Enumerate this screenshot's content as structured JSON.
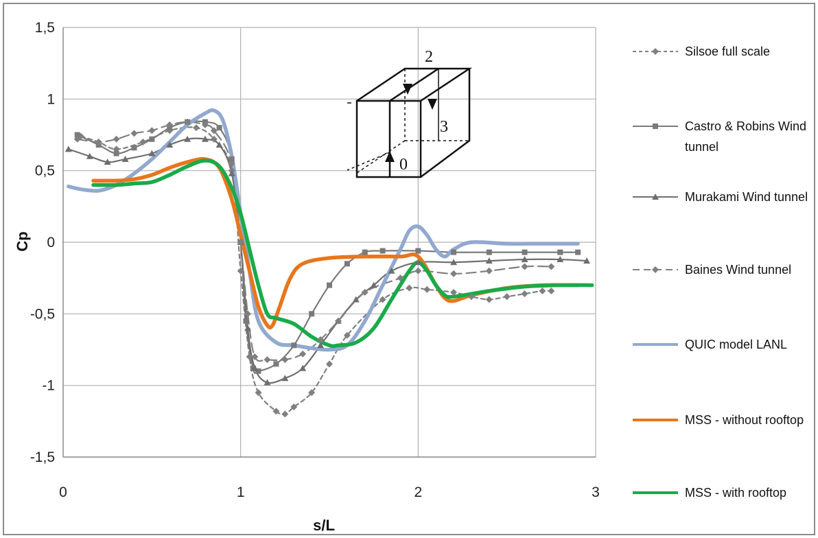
{
  "chart_data": {
    "type": "line",
    "xlabel": "s/L",
    "ylabel": "Cp",
    "xlim": [
      0,
      3
    ],
    "ylim": [
      -1.5,
      1.5
    ],
    "x_ticks": [
      "0",
      "1",
      "2",
      "3"
    ],
    "y_ticks": [
      "1,5",
      "1",
      "0,5",
      "0",
      "-0,5",
      "-1",
      "-1,5"
    ],
    "grid": "vertical and horizontal major gridlines",
    "legend_position": "right",
    "inset_labels": [
      "2",
      "3",
      "0"
    ],
    "series": [
      {
        "name": "Silsoe full scale",
        "color": "#808080",
        "style": "dashed",
        "marker": "diamond",
        "x": [
          0.1,
          0.2,
          0.3,
          0.45,
          0.6,
          0.75,
          0.85,
          0.95,
          1.0,
          1.05,
          1.1,
          1.2,
          1.25,
          1.3,
          1.4,
          1.5,
          1.6,
          1.8,
          1.95,
          2.05,
          2.2,
          2.3,
          2.4,
          2.5,
          2.6,
          2.7,
          2.75
        ],
        "y": [
          0.74,
          0.7,
          0.65,
          0.7,
          0.78,
          0.8,
          0.72,
          0.5,
          -0.2,
          -0.8,
          -1.05,
          -1.18,
          -1.2,
          -1.15,
          -1.05,
          -0.85,
          -0.65,
          -0.4,
          -0.32,
          -0.33,
          -0.35,
          -0.38,
          -0.4,
          -0.38,
          -0.36,
          -0.34,
          -0.34
        ]
      },
      {
        "name": "Castro & Robins Wind tunnel",
        "color": "#7a7a7a",
        "style": "solid",
        "marker": "square",
        "x": [
          0.08,
          0.2,
          0.3,
          0.4,
          0.5,
          0.6,
          0.7,
          0.8,
          0.88,
          0.95,
          1.0,
          1.03,
          1.07,
          1.1,
          1.2,
          1.3,
          1.4,
          1.5,
          1.6,
          1.7,
          1.8,
          2.0,
          2.2,
          2.4,
          2.6,
          2.8,
          2.9
        ],
        "y": [
          0.75,
          0.68,
          0.62,
          0.66,
          0.72,
          0.8,
          0.84,
          0.84,
          0.8,
          0.58,
          0.0,
          -0.55,
          -0.88,
          -0.9,
          -0.85,
          -0.72,
          -0.5,
          -0.3,
          -0.15,
          -0.07,
          -0.06,
          -0.06,
          -0.07,
          -0.07,
          -0.07,
          -0.07,
          -0.07
        ]
      },
      {
        "name": "Murakami Wind tunnel",
        "color": "#6e6e6e",
        "style": "solid",
        "marker": "triangle",
        "x": [
          0.03,
          0.15,
          0.25,
          0.35,
          0.5,
          0.6,
          0.7,
          0.8,
          0.88,
          0.95,
          1.0,
          1.04,
          1.08,
          1.15,
          1.25,
          1.35,
          1.45,
          1.55,
          1.65,
          1.75,
          1.85,
          2.0,
          2.2,
          2.4,
          2.6,
          2.8,
          2.95
        ],
        "y": [
          0.65,
          0.6,
          0.56,
          0.58,
          0.62,
          0.68,
          0.72,
          0.72,
          0.68,
          0.48,
          0.0,
          -0.6,
          -0.88,
          -0.98,
          -0.95,
          -0.88,
          -0.72,
          -0.55,
          -0.4,
          -0.3,
          -0.2,
          -0.14,
          -0.14,
          -0.13,
          -0.12,
          -0.12,
          -0.13
        ]
      },
      {
        "name": "Baines Wind tunnel",
        "color": "#808080",
        "style": "longdash",
        "marker": "diamond",
        "x": [
          0.08,
          0.2,
          0.3,
          0.4,
          0.5,
          0.6,
          0.7,
          0.8,
          0.85,
          0.95,
          1.0,
          1.04,
          1.08,
          1.15,
          1.25,
          1.35,
          1.45,
          1.55,
          1.7,
          1.9,
          2.0,
          2.2,
          2.4,
          2.6,
          2.75
        ],
        "y": [
          0.72,
          0.7,
          0.72,
          0.76,
          0.78,
          0.82,
          0.84,
          0.82,
          0.78,
          0.55,
          0.0,
          -0.5,
          -0.8,
          -0.82,
          -0.82,
          -0.78,
          -0.68,
          -0.55,
          -0.35,
          -0.25,
          -0.2,
          -0.22,
          -0.2,
          -0.17,
          -0.17
        ]
      },
      {
        "name": "QUIC model LANL",
        "color": "#92a9cf",
        "style": "solid",
        "marker": "none",
        "x": [
          0.03,
          0.1,
          0.2,
          0.3,
          0.4,
          0.5,
          0.6,
          0.7,
          0.8,
          0.85,
          0.9,
          0.95,
          1.0,
          1.05,
          1.1,
          1.2,
          1.3,
          1.4,
          1.5,
          1.6,
          1.7,
          1.8,
          1.9,
          1.95,
          2.0,
          2.05,
          2.1,
          2.15,
          2.2,
          2.3,
          2.5,
          2.7,
          2.9
        ],
        "y": [
          0.39,
          0.37,
          0.36,
          0.4,
          0.48,
          0.58,
          0.7,
          0.82,
          0.9,
          0.92,
          0.85,
          0.6,
          0.2,
          -0.2,
          -0.55,
          -0.7,
          -0.72,
          -0.74,
          -0.75,
          -0.72,
          -0.55,
          -0.3,
          -0.05,
          0.08,
          0.11,
          0.05,
          -0.05,
          -0.1,
          -0.05,
          0.0,
          -0.01,
          -0.01,
          -0.01
        ]
      },
      {
        "name": "MSS - without rooftop",
        "color": "#e8761c",
        "style": "solid",
        "marker": "none",
        "x": [
          0.17,
          0.3,
          0.4,
          0.5,
          0.6,
          0.7,
          0.8,
          0.88,
          0.95,
          1.0,
          1.05,
          1.1,
          1.15,
          1.18,
          1.22,
          1.28,
          1.35,
          1.5,
          1.7,
          1.9,
          2.0,
          2.1,
          2.15,
          2.2,
          2.3,
          2.5,
          2.7,
          2.9
        ],
        "y": [
          0.43,
          0.43,
          0.44,
          0.47,
          0.52,
          0.56,
          0.58,
          0.52,
          0.3,
          0.05,
          -0.2,
          -0.45,
          -0.58,
          -0.58,
          -0.45,
          -0.25,
          -0.15,
          -0.11,
          -0.1,
          -0.1,
          -0.1,
          -0.3,
          -0.39,
          -0.41,
          -0.37,
          -0.32,
          -0.3,
          -0.3
        ]
      },
      {
        "name": "MSS - with rooftop",
        "color": "#1aaa4a",
        "style": "solid",
        "marker": "none",
        "x": [
          0.17,
          0.3,
          0.4,
          0.5,
          0.6,
          0.7,
          0.8,
          0.88,
          0.95,
          1.0,
          1.05,
          1.1,
          1.15,
          1.2,
          1.3,
          1.4,
          1.5,
          1.55,
          1.65,
          1.75,
          1.85,
          1.95,
          2.0,
          2.05,
          2.1,
          2.15,
          2.2,
          2.4,
          2.6,
          2.8,
          2.98
        ],
        "y": [
          0.4,
          0.4,
          0.41,
          0.42,
          0.47,
          0.53,
          0.57,
          0.53,
          0.38,
          0.2,
          -0.05,
          -0.3,
          -0.5,
          -0.53,
          -0.57,
          -0.66,
          -0.72,
          -0.72,
          -0.7,
          -0.6,
          -0.4,
          -0.2,
          -0.14,
          -0.2,
          -0.3,
          -0.37,
          -0.38,
          -0.34,
          -0.31,
          -0.3,
          -0.3
        ]
      }
    ]
  }
}
